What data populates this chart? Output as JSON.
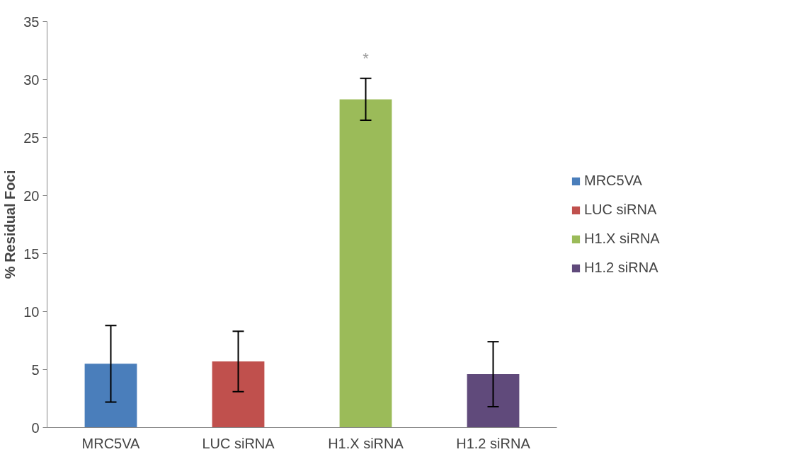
{
  "chart_data": {
    "type": "bar",
    "ylabel": "% Residual Foci",
    "categories": [
      "MRC5VA",
      "LUC siRNA",
      "H1.X siRNA",
      "H1.2 siRNA"
    ],
    "series": [
      {
        "name": "MRC5VA",
        "color": "#4a7ebb",
        "values": [
          5.5,
          null,
          null,
          null
        ],
        "errors": [
          3.3,
          null,
          null,
          null
        ]
      },
      {
        "name": "LUC siRNA",
        "color": "#c0504d",
        "values": [
          null,
          5.7,
          null,
          null
        ],
        "errors": [
          null,
          2.6,
          null,
          null
        ]
      },
      {
        "name": "H1.X siRNA",
        "color": "#9bbb59",
        "values": [
          null,
          null,
          28.3,
          null
        ],
        "errors": [
          null,
          null,
          1.8,
          null
        ]
      },
      {
        "name": "H1.2 siRNA",
        "color": "#604a7b",
        "values": [
          null,
          null,
          null,
          4.6
        ],
        "errors": [
          null,
          null,
          null,
          2.8
        ]
      }
    ],
    "ylim": [
      0,
      35
    ],
    "yticks": [
      0,
      5,
      10,
      15,
      20,
      25,
      30,
      35
    ],
    "annotations": [
      "*"
    ],
    "legend": "right",
    "grid": false
  }
}
